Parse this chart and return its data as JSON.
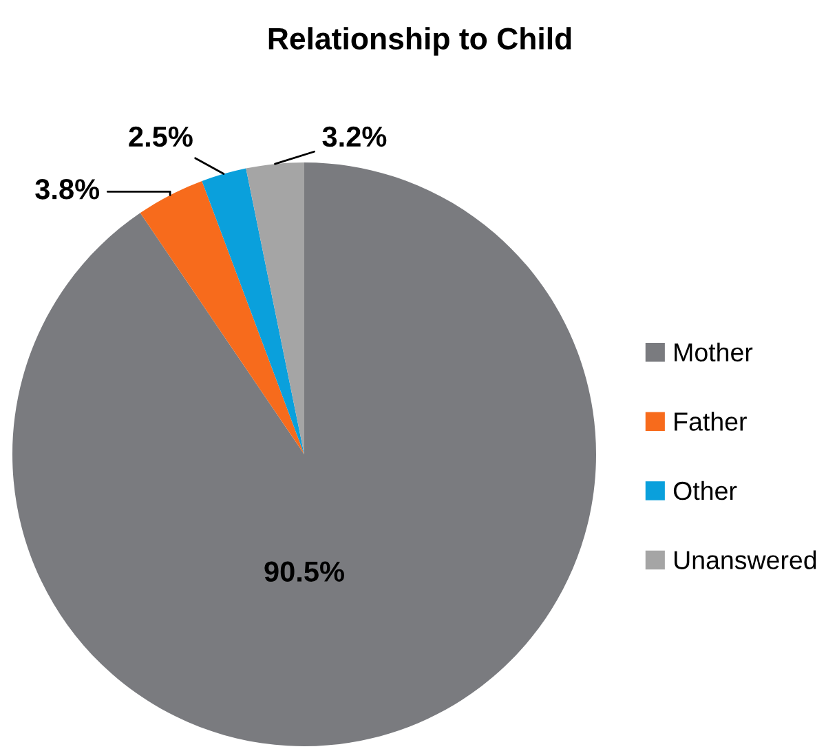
{
  "chart_data": {
    "type": "pie",
    "title": "Relationship to Child",
    "categories": [
      "Mother",
      "Father",
      "Other",
      "Unanswered"
    ],
    "values": [
      90.5,
      3.8,
      2.5,
      3.2
    ],
    "value_labels": [
      "90.5%",
      "3.8%",
      "2.5%",
      "3.2%"
    ],
    "colors": [
      "#7a7b7f",
      "#f76b1c",
      "#0aa0dc",
      "#a5a5a5"
    ],
    "legend": "right"
  }
}
